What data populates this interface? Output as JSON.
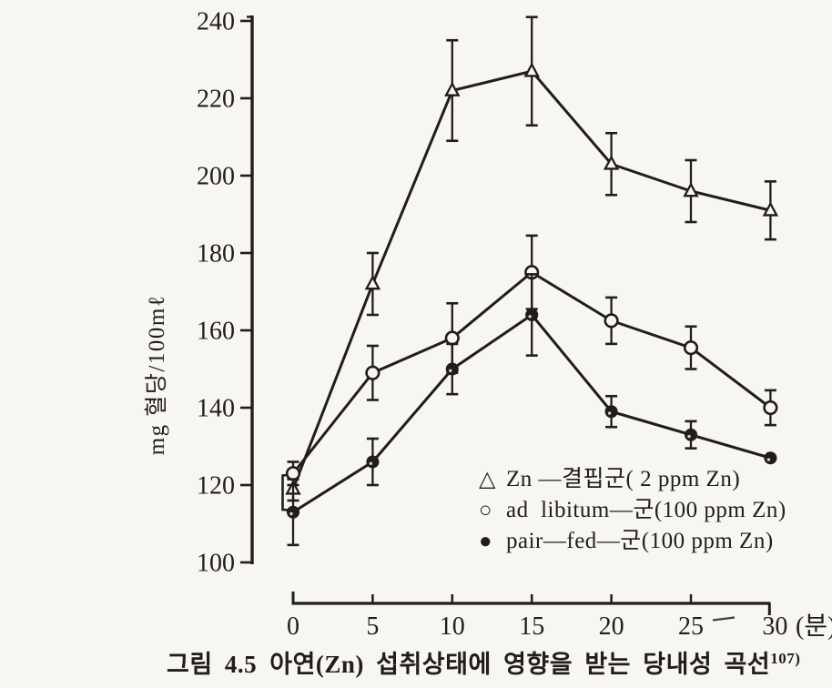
{
  "colors": {
    "ink": "#211e19",
    "paper": "#f8f6f1"
  },
  "figure": {
    "caption": {
      "label": "그림 4.5",
      "text": "아연(Zn) 섭취상태에 영향을 받는 당내성 곡선",
      "footnote_ref": "107)"
    }
  },
  "chart_data": {
    "type": "line",
    "title": "",
    "x": [
      0,
      5,
      10,
      15,
      20,
      25,
      30
    ],
    "x_unit_label": "(분)",
    "x_axis_artifact": "—",
    "ylabel": "mg 혈당/100mℓ",
    "ylim": [
      100,
      240
    ],
    "yticks": [
      100,
      120,
      140,
      160,
      180,
      200,
      220,
      240
    ],
    "grid": false,
    "legend_position": "inside-bottom-right",
    "error_bars": true,
    "series": [
      {
        "id": "zn-deficient",
        "legend_glyph": "△",
        "legend_label": "Zn —결핍군( 2 ppm Zn)",
        "marker": "triangle-open",
        "values": [
          119,
          172,
          222,
          227,
          203,
          196,
          191
        ],
        "errors": [
          3,
          8,
          13,
          14,
          8,
          8,
          7.5
        ]
      },
      {
        "id": "ad-libitum",
        "legend_glyph": "○",
        "legend_label": "ad  libitum—군(100 ppm Zn)",
        "marker": "circle-open",
        "values": [
          123,
          149,
          158,
          175,
          162.5,
          155.5,
          140
        ],
        "errors": [
          3,
          7,
          9,
          9.5,
          6,
          5.5,
          4.5
        ]
      },
      {
        "id": "pair-fed",
        "legend_glyph": "●",
        "legend_label": "pair—fed—군(100 ppm Zn)",
        "marker": "circle-filled",
        "values": [
          113,
          126,
          150,
          164,
          139,
          133,
          127
        ],
        "errors": [
          8.5,
          6,
          6.5,
          10.5,
          4,
          3.5,
          0
        ]
      }
    ]
  }
}
